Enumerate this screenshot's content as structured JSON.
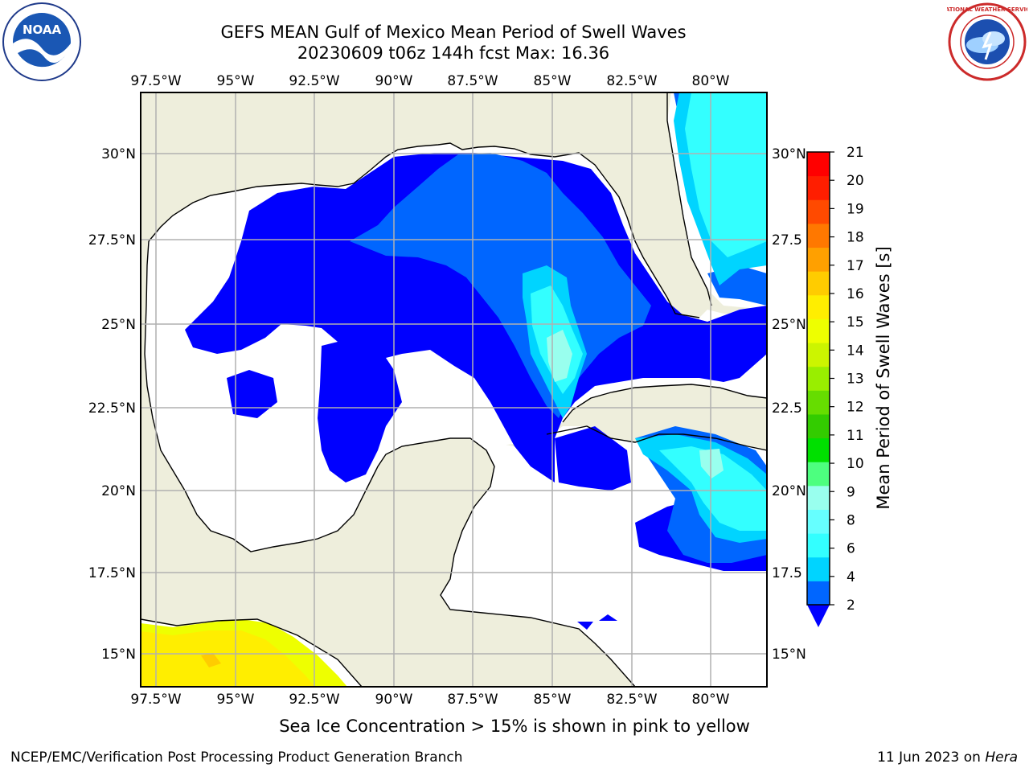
{
  "title": {
    "line1": "GEFS MEAN Gulf of Mexico Mean Period of Swell Waves",
    "line2": "20230609 t06z 144h fcst   Max: 16.36"
  },
  "map": {
    "lon_labels": [
      "97.5°W",
      "95°W",
      "92.5°W",
      "90°W",
      "87.5°W",
      "85°W",
      "82.5°W",
      "80°W"
    ],
    "lat_labels_left": [
      "30°N",
      "27.5°N",
      "25°N",
      "22.5°N",
      "20°N",
      "17.5°N",
      "15°N"
    ],
    "lat_labels_right": [
      "30°N",
      "27.5",
      "25°N",
      "22.5",
      "20°N",
      "17.5",
      "15°N"
    ],
    "land_color": "#eeeedc",
    "ocean_color": "#ffffff",
    "grid_color": "#b0b0b0"
  },
  "colorbar": {
    "label": "Mean Period of Swell Waves [s]",
    "ticks": [
      "2",
      "4",
      "6",
      "8",
      "9",
      "10",
      "11",
      "12",
      "13",
      "14",
      "15",
      "16",
      "17",
      "18",
      "19",
      "20",
      "21"
    ],
    "colors": [
      "#0066ff",
      "#00d4ff",
      "#33ffff",
      "#66ffff",
      "#99ffee",
      "#4dff7f",
      "#00e000",
      "#33cc00",
      "#66dd00",
      "#99ee00",
      "#ccf500",
      "#eeff00",
      "#ffee00",
      "#ffcc00",
      "#ffa000",
      "#ff7800",
      "#ff4a00",
      "#ff1e00",
      "#ff0000"
    ],
    "under_color": "#0000ff"
  },
  "note": "Sea Ice Concentration > 15% is shown in pink to yellow",
  "footer": {
    "left": "NCEP/EMC/Verification Post Processing Product Generation Branch",
    "right_date": "11 Jun 2023 on ",
    "right_host": "Hera"
  },
  "logos": {
    "noaa": "NOAA",
    "nws": "NATIONAL WEATHER SERVICE"
  }
}
